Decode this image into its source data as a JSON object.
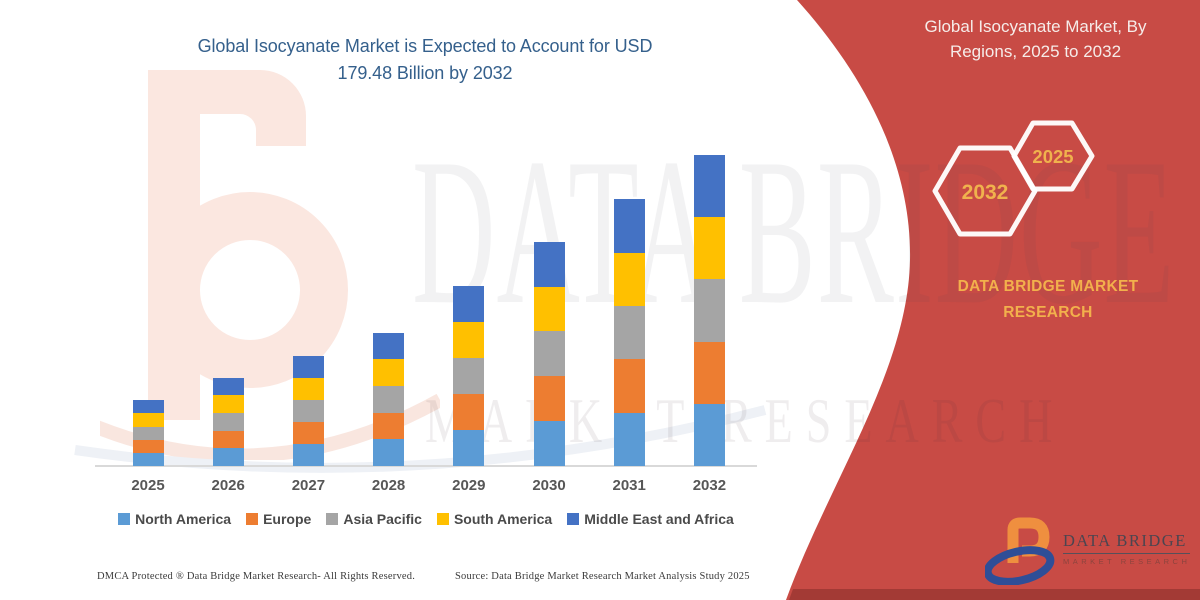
{
  "titles": {
    "main_line1": "Global Isocyanate Market is Expected to Account for USD",
    "main_line2": "179.48 Billion by 2032"
  },
  "right_panel": {
    "heading_line1": "Global Isocyanate Market, By",
    "heading_line2": "Regions, 2025 to 2032",
    "hexagon_back_label": "2032",
    "hexagon_front_label": "2025",
    "brand_text": "DATA BRIDGE MARKET RESEARCH",
    "logo_name": "DATA BRIDGE",
    "logo_tagline": "MARKET RESEARCH"
  },
  "watermarks": {
    "big_text": "DATA BRIDGE",
    "small_text": "MARKET RESEARCH"
  },
  "footer": {
    "dmca": "DMCA Protected ® Data Bridge Market Research-  All Rights Reserved.",
    "source": "Source: Data Bridge Market Research  Market Analysis Study 2025"
  },
  "colors": {
    "accent_red": "#C84B45",
    "title_blue": "#35608C",
    "brand_yellow": "#F2B04C"
  },
  "chart_data": {
    "type": "bar",
    "stacked": true,
    "title": "Global Isocyanate Market is Expected to Account for USD 179.48 Billion by 2032",
    "categories": [
      "2025",
      "2026",
      "2027",
      "2028",
      "2029",
      "2030",
      "2031",
      "2032"
    ],
    "series": [
      {
        "name": "North America",
        "color": "#5B9BD5",
        "values": [
          7.6,
          10.2,
          12.7,
          15.4,
          20.8,
          25.9,
          30.8,
          35.9
        ]
      },
      {
        "name": "Europe",
        "color": "#ED7D31",
        "values": [
          7.6,
          10.2,
          12.7,
          15.4,
          20.8,
          25.9,
          30.8,
          35.9
        ]
      },
      {
        "name": "Asia Pacific",
        "color": "#A5A5A5",
        "values": [
          7.6,
          10.2,
          12.7,
          15.4,
          20.8,
          25.9,
          30.8,
          35.9
        ]
      },
      {
        "name": "South America",
        "color": "#FFC000",
        "values": [
          7.6,
          10.2,
          12.7,
          15.4,
          20.8,
          25.9,
          30.8,
          35.9
        ]
      },
      {
        "name": "Middle East and Africa",
        "color": "#4472C4",
        "values": [
          7.6,
          10.2,
          12.7,
          15.4,
          20.8,
          25.9,
          30.8,
          35.9
        ]
      }
    ],
    "totals_usd_billion": [
      38.1,
      50.8,
      63.5,
      76.8,
      103.9,
      129.3,
      154.1,
      179.48
    ],
    "value_unit": "USD Billion",
    "xlabel": "",
    "ylabel": "",
    "ylim": [
      0,
      185
    ],
    "y_axis_visible": false,
    "gridlines": false,
    "data_labels": false,
    "legend_position": "bottom"
  }
}
